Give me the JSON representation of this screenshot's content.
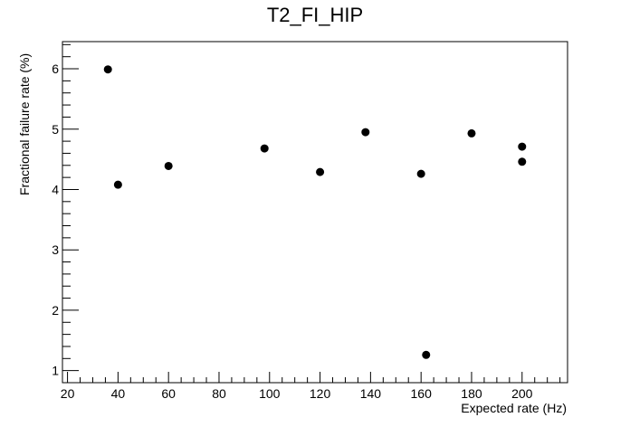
{
  "chart_data": {
    "type": "scatter",
    "title": "T2_FI_HIP",
    "xlabel": "Expected rate (Hz)",
    "ylabel": "Fractional failure rate (%)",
    "xlim": [
      18,
      218
    ],
    "ylim": [
      0.8,
      6.45
    ],
    "xticks": [
      20,
      40,
      60,
      80,
      100,
      120,
      140,
      160,
      180,
      200
    ],
    "yticks": [
      1,
      2,
      3,
      4,
      5,
      6
    ],
    "grid": false,
    "marker_color": "#000000",
    "points": [
      {
        "x": 36,
        "y": 5.99
      },
      {
        "x": 40,
        "y": 4.08
      },
      {
        "x": 60,
        "y": 4.39
      },
      {
        "x": 98,
        "y": 4.68
      },
      {
        "x": 120,
        "y": 4.29
      },
      {
        "x": 138,
        "y": 4.95
      },
      {
        "x": 160,
        "y": 4.26
      },
      {
        "x": 162,
        "y": 1.26
      },
      {
        "x": 180,
        "y": 4.93
      },
      {
        "x": 200,
        "y": 4.71
      },
      {
        "x": 200,
        "y": 4.46
      }
    ]
  }
}
